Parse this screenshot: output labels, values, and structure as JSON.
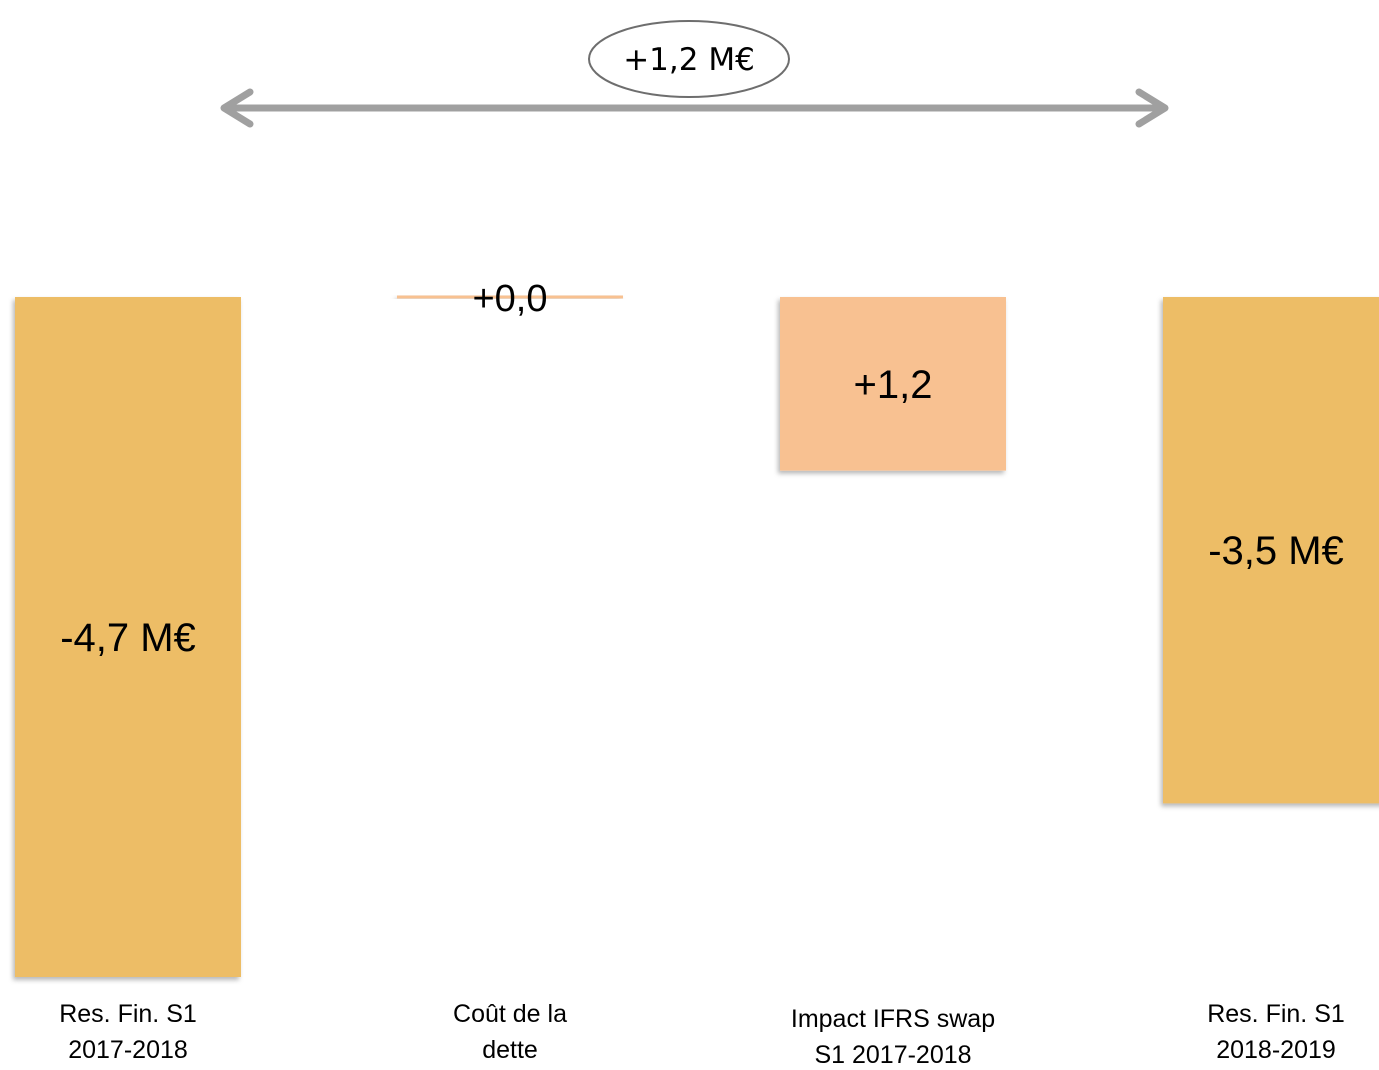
{
  "chart_data": {
    "type": "bar",
    "subtype": "waterfall",
    "unit": "M€",
    "categories": [
      [
        "Res. Fin. S1",
        "2017-2018"
      ],
      [
        "Coût de la",
        "dette"
      ],
      [
        "Impact IFRS swap",
        "S1 2017-2018"
      ],
      [
        "Res. Fin. S1",
        "2018-2019"
      ]
    ],
    "values": [
      -4.7,
      0.0,
      1.2,
      -3.5
    ],
    "kinds": [
      "total",
      "delta",
      "delta",
      "total"
    ],
    "data_labels": [
      "-4,7 M€",
      "+0,0",
      "+1,2",
      "-3,5 M€"
    ],
    "ylim": [
      -4.7,
      0
    ],
    "variation": {
      "label": "+1,2 M€",
      "from": "Res. Fin. S1 2017-2018",
      "to": "Res. Fin. S1 2018-2019"
    },
    "colors": {
      "total": "#EDBD66",
      "delta": "#F8C191",
      "arrow": "#A0A0A0",
      "ellipse_stroke": "#6E6E6E",
      "background": "#FFFFFF"
    },
    "grid": false,
    "legend": "none"
  }
}
